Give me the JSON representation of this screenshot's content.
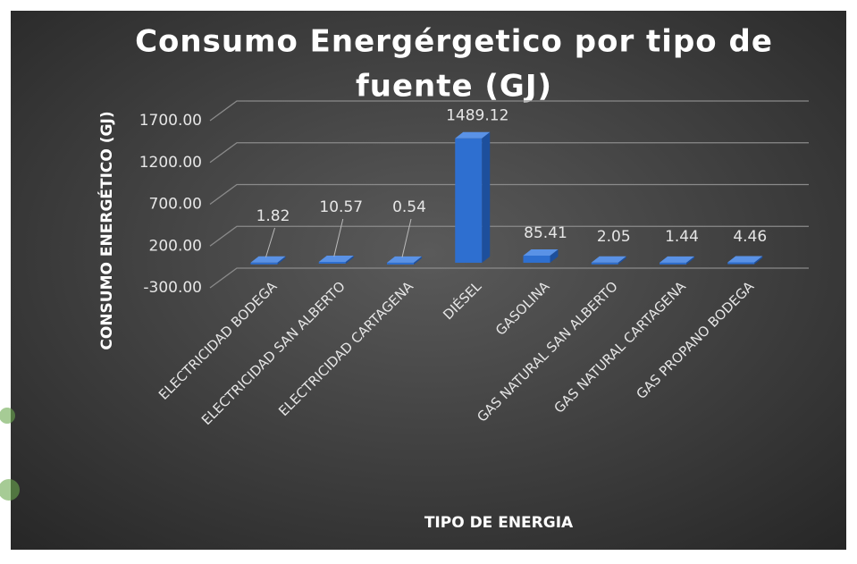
{
  "chart_data": {
    "type": "bar3d",
    "title": "Consumo Energérgetico por tipo de fuente (GJ)",
    "x_label": "TIPO DE ENERGIA",
    "y_label": "CONSUMO ENERGÉTICO (GJ)",
    "categories": [
      "ELECTRICIDAD BODEGA",
      "ELECTRICIDAD SAN ALBERTO",
      "ELECTRICIDAD CARTAGENA",
      "DIÉSEL",
      "GASOLINA",
      "GAS NATURAL SAN ALBERTO",
      "GAS NATURAL CARTAGENA",
      "GAS PROPANO BODEGA"
    ],
    "values": [
      1.82,
      10.57,
      0.54,
      1489.12,
      85.41,
      2.05,
      1.44,
      4.46
    ],
    "color": "#2e6fd0",
    "ylim": [
      -300,
      1700
    ],
    "yticks": [
      {
        "value": -300,
        "label": "-300.00"
      },
      {
        "value": 200,
        "label": "200.00"
      },
      {
        "value": 700,
        "label": "700.00"
      },
      {
        "value": 1200,
        "label": "1200.00"
      },
      {
        "value": 1700,
        "label": "1700.00"
      }
    ],
    "grid": true
  }
}
